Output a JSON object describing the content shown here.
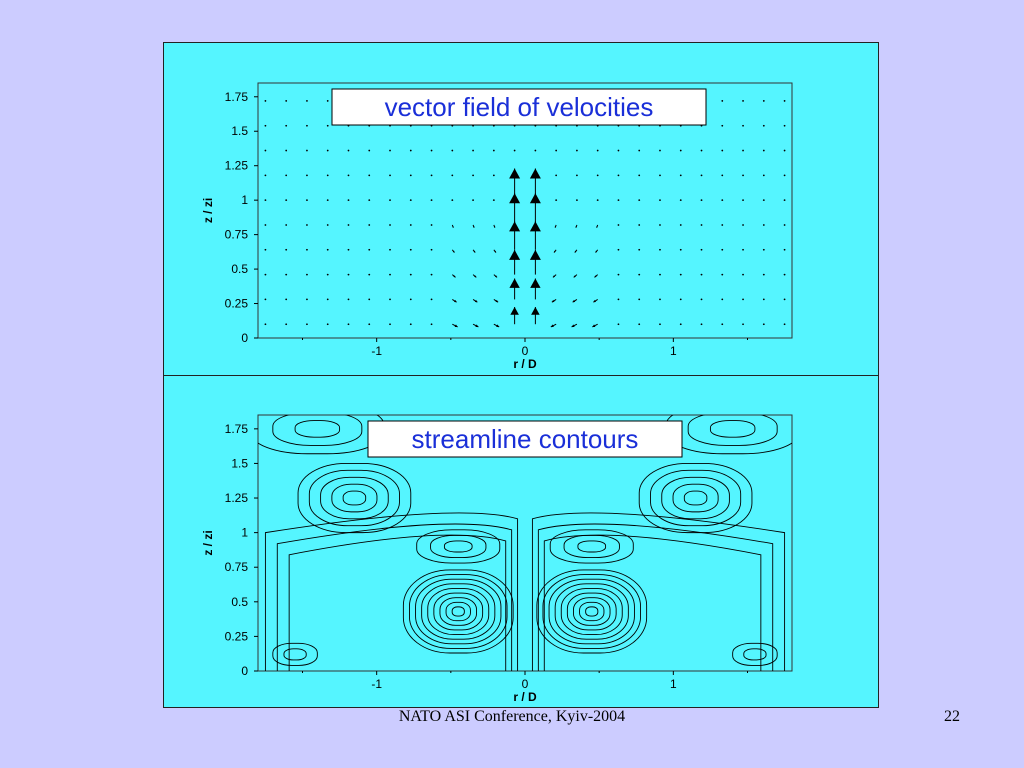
{
  "slide": {
    "footer": "NATO ASI Conference, Kyiv-2004",
    "page_number": "22"
  },
  "colors": {
    "slide_background": "#ccccff",
    "figure_background": "#55f5ff",
    "title_text": "#1a2fd8",
    "ink": "#000000"
  },
  "chart_data": [
    {
      "type": "scatter",
      "title": "vector field of velocities",
      "xlabel": "r / D",
      "ylabel": "z / zi",
      "xlim": [
        -1.8,
        1.8
      ],
      "ylim": [
        0,
        1.85
      ],
      "x_ticks": [
        "-1",
        "0",
        "1"
      ],
      "y_ticks": [
        "0",
        "0.25",
        "0.5",
        "0.75",
        "1",
        "1.25",
        "1.5",
        "1.75"
      ],
      "grid": false,
      "note_series": "velocity arrows; strong upward jet near r/D 0, |r/D| < 0.2, z/zi 0.1-1.1"
    },
    {
      "type": "scatter",
      "title": "streamline contours",
      "xlabel": "r / D",
      "ylabel": "z / zi",
      "xlim": [
        -1.8,
        1.8
      ],
      "ylim": [
        0,
        1.85
      ],
      "x_ticks": [
        "-1",
        "0",
        "1"
      ],
      "y_ticks": [
        "0",
        "0.25",
        "0.5",
        "0.75",
        "1",
        "1.25",
        "1.5",
        "1.75"
      ],
      "grid": false,
      "vortex_centers": [
        {
          "x": -0.45,
          "y": 0.45
        },
        {
          "x": 0.45,
          "y": 0.45
        },
        {
          "x": -1.15,
          "y": 1.25
        },
        {
          "x": 1.15,
          "y": 1.25
        },
        {
          "x": -0.45,
          "y": 0.9
        },
        {
          "x": 0.45,
          "y": 0.9
        }
      ]
    }
  ]
}
